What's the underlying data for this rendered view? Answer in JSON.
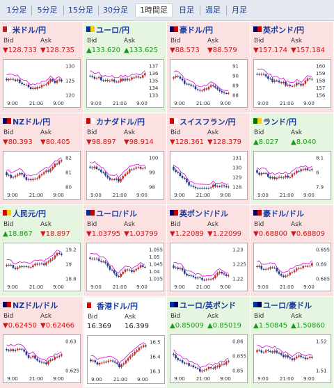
{
  "tabs": [
    "1分足",
    "5分足",
    "15分足",
    "30分足",
    "1時間足",
    "日足",
    "週足",
    "月足"
  ],
  "selected_tab": 4,
  "tiles": [
    {
      "name": "米ドル/円",
      "status": "down",
      "bid_label": "Bid",
      "ask_label": "Ask",
      "bid": "▼128.733",
      "ask": "▼128.735",
      "ticks": [
        "130",
        "125",
        "120"
      ],
      "times": [
        "9:00",
        "21:00",
        "9:00"
      ]
    },
    {
      "name": "ユーロ/円",
      "status": "up",
      "bid_label": "Bid",
      "ask_label": "Ask",
      "bid": "▲133.620",
      "ask": "▲133.625",
      "ticks": [
        "137",
        "136",
        "135",
        "134",
        "133"
      ],
      "times": [
        "9:00",
        "21:00",
        "9:00"
      ]
    },
    {
      "name": "豪ドル/円",
      "status": "down",
      "bid_label": "Bid",
      "ask_label": "Ask",
      "bid": "▼88.573",
      "ask": "▼88.579",
      "ticks": [
        "91",
        "90",
        "89",
        "88"
      ],
      "times": [
        "9:00",
        "21:00",
        "9:00"
      ]
    },
    {
      "name": "英ポンド/円",
      "status": "down",
      "bid_label": "Bid",
      "ask_label": "Ask",
      "bid": "▼157.174",
      "ask": "▼157.184",
      "ticks": [
        "160",
        "159",
        "158",
        "157",
        "156"
      ],
      "times": [
        "9:00",
        "21:00",
        "9:00"
      ]
    },
    {
      "name": "NZドル/円",
      "status": "down",
      "bid_label": "Bid",
      "ask_label": "Ask",
      "bid": "▼80.393",
      "ask": "▼80.405",
      "ticks": [
        "82",
        "81",
        "80"
      ],
      "times": [
        "9:00",
        "21:00",
        "9:00"
      ]
    },
    {
      "name": "カナダドル/円",
      "status": "down",
      "bid_label": "Bid",
      "ask_label": "Ask",
      "bid": "▼98.897",
      "ask": "▼98.914",
      "ticks": [
        "100",
        "99",
        "98"
      ],
      "times": [
        "9:00",
        "21:00",
        "9:00"
      ]
    },
    {
      "name": "スイスフラン/円",
      "status": "down",
      "bid_label": "Bid",
      "ask_label": "Ask",
      "bid": "▼128.361",
      "ask": "▼128.379",
      "ticks": [
        "131",
        "130",
        "129",
        "128"
      ],
      "times": [
        "9:00",
        "21:00",
        "9:00"
      ]
    },
    {
      "name": "ランド/円",
      "status": "up",
      "bid_label": "Bid",
      "ask_label": "Ask",
      "bid": "▲8.027",
      "ask": "▲8.040",
      "ticks": [
        "8.1",
        "8",
        "7.9"
      ],
      "times": [
        "9:00",
        "21:00",
        "9:00"
      ]
    },
    {
      "name": "人民元/円",
      "status": "up",
      "bid_label": "Bid",
      "ask_label": "Ask",
      "bid": "▲18.867",
      "ask": "▼18.897",
      "ticks": [
        "19.2",
        "19",
        "18.8"
      ],
      "times": [
        "9:00",
        "21:00",
        "9:00"
      ]
    },
    {
      "name": "ユーロ/ドル",
      "status": "down",
      "bid_label": "Bid",
      "ask_label": "Ask",
      "bid": "▼1.03795",
      "ask": "▼1.03799",
      "ticks": [
        "1.055",
        "1.05",
        "1.045",
        "1.04",
        "1.035"
      ],
      "times": [
        "9:00",
        "21:00",
        "9:00"
      ]
    },
    {
      "name": "英ポンド/ドル",
      "status": "down",
      "bid_label": "Bid",
      "ask_label": "Ask",
      "bid": "▼1.22089",
      "ask": "▼1.22099",
      "ticks": [
        "1.23",
        "1.225",
        "1.22"
      ],
      "times": [
        "9:00",
        "21:00",
        "9:00"
      ]
    },
    {
      "name": "豪ドル/ドル",
      "status": "down",
      "bid_label": "Bid",
      "ask_label": "Ask",
      "bid": "▼0.68800",
      "ask": "▼0.68809",
      "ticks": [
        "0.695",
        "0.69",
        "0.685"
      ],
      "times": [
        "9:00",
        "21:00",
        "9:00"
      ]
    },
    {
      "name": "NZドル/ドル",
      "status": "down",
      "bid_label": "Bid",
      "ask_label": "Ask",
      "bid": "▼0.62450",
      "ask": "▼0.62466",
      "ticks": [
        "0.63",
        "0.625"
      ],
      "times": [
        "9:00",
        "21:00",
        "9:00"
      ]
    },
    {
      "name": "香港ドル/円",
      "status": "flat",
      "bid_label": "Bid",
      "ask_label": "Ask",
      "bid": "16.369",
      "ask": "16.399",
      "ticks": [
        "16.5",
        "16.4",
        "16.3"
      ],
      "times": [
        "9:00",
        "21:00",
        "9:00"
      ]
    },
    {
      "name": "ユーロ/英ポンド",
      "status": "up",
      "bid_label": "Bid",
      "ask_label": "Ask",
      "bid": "▲0.85009",
      "ask": "▲0.85019",
      "ticks": [
        "0.86",
        "0.855",
        "0.85"
      ],
      "times": [
        "9:00",
        "21:00",
        "9:00"
      ]
    },
    {
      "name": "ユーロ/豪ドル",
      "status": "up",
      "bid_label": "Bid",
      "ask_label": "Ask",
      "bid": "▲1.50845",
      "ask": "▲1.50860",
      "ticks": [
        "1.52",
        "1.51"
      ],
      "times": [
        "9:00",
        "21:00",
        "9:00"
      ]
    }
  ]
}
